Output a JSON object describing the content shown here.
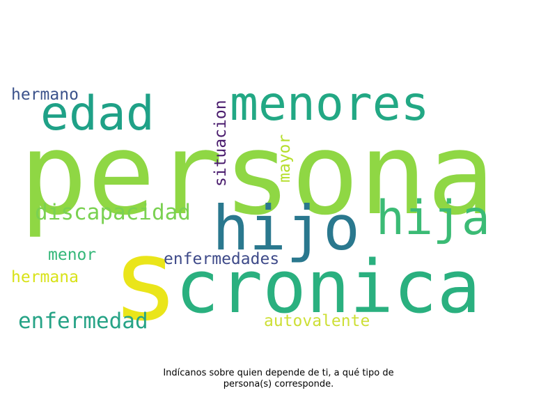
{
  "words": [
    {
      "text": "persona",
      "color": "#8fd744",
      "vertical": false
    },
    {
      "text": "s",
      "color": "#eae51a",
      "vertical": false
    },
    {
      "text": "cronica",
      "color": "#2ab07f",
      "vertical": false
    },
    {
      "text": "hijo",
      "color": "#2a788e",
      "vertical": false
    },
    {
      "text": "menores",
      "color": "#22a884",
      "vertical": false
    },
    {
      "text": "edad",
      "color": "#1fa187",
      "vertical": false
    },
    {
      "text": "hija",
      "color": "#3bbb75",
      "vertical": false
    },
    {
      "text": "discapacidad",
      "color": "#7ad151",
      "vertical": false
    },
    {
      "text": "enfermedad",
      "color": "#26a386",
      "vertical": false
    },
    {
      "text": "enfermedades",
      "color": "#3e4a89",
      "vertical": false
    },
    {
      "text": "hermano",
      "color": "#3b528b",
      "vertical": false
    },
    {
      "text": "situacion",
      "color": "#481a6c",
      "vertical": true
    },
    {
      "text": "mayor",
      "color": "#b5de2b",
      "vertical": true
    },
    {
      "text": "menor",
      "color": "#35b779",
      "vertical": false
    },
    {
      "text": "hermana",
      "color": "#d8e219",
      "vertical": false
    },
    {
      "text": "autovalente",
      "color": "#cddf36",
      "vertical": false
    }
  ],
  "caption": "Indícanos sobre quien depende de ti, a qué tipo de persona(s) corresponde."
}
